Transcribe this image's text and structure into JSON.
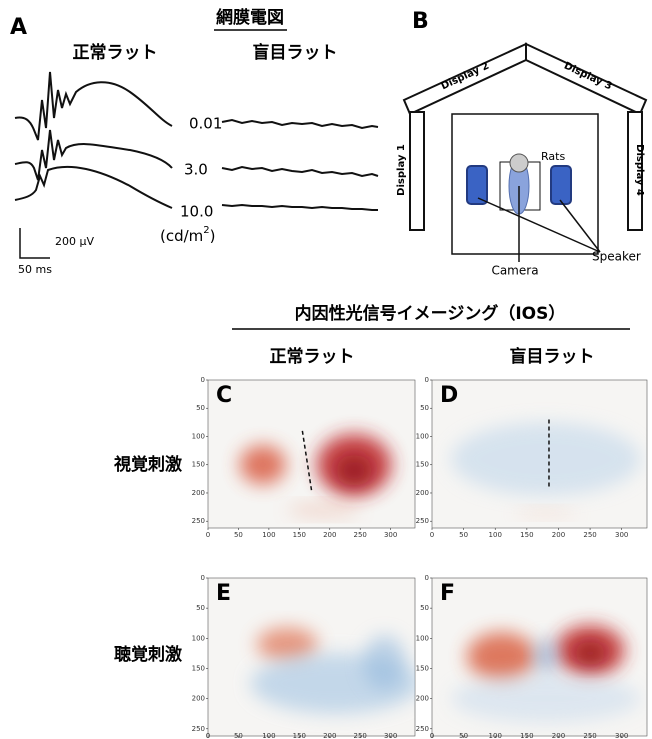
{
  "panel_a": {
    "letter": "A",
    "title": "網膜電図",
    "groups": [
      "正常ラット",
      "盲目ラット"
    ],
    "intensities": [
      "0.01",
      "3.0",
      "10.0"
    ],
    "unit_prefix": "(cd/m",
    "unit_exponent": "2",
    "unit_suffix": ")",
    "scale_voltage": "200 µV",
    "scale_time": "50 ms"
  },
  "panel_b": {
    "letter": "B",
    "displays": [
      "Display 1",
      "Display 2",
      "Display 3",
      "Display 4"
    ],
    "rats": "Rats",
    "camera": "Camera",
    "speaker": "Speaker"
  },
  "ios": {
    "title": "内因性光信号イメージング（IOS）",
    "groups": [
      "正常ラット",
      "盲目ラット"
    ],
    "conditions": [
      "視覚刺激",
      "聴覚刺激"
    ],
    "panels": [
      "C",
      "D",
      "E",
      "F"
    ],
    "yticks": [
      "0",
      "50",
      "100",
      "150",
      "200",
      "250"
    ],
    "xticks": [
      "0",
      "50",
      "100",
      "150",
      "200",
      "250",
      "300"
    ]
  }
}
